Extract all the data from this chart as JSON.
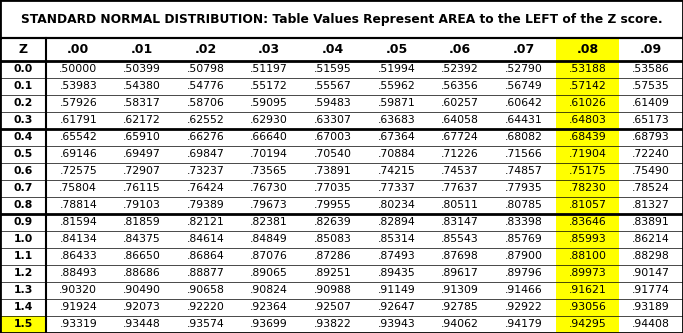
{
  "title": "STANDARD NORMAL DISTRIBUTION: Table Values Represent AREA to the LEFT of the Z score.",
  "columns": [
    "Z",
    ".00",
    ".01",
    ".02",
    ".03",
    ".04",
    ".05",
    ".06",
    ".07",
    ".08",
    ".09"
  ],
  "rows": [
    [
      "0.0",
      ".50000",
      ".50399",
      ".50798",
      ".51197",
      ".51595",
      ".51994",
      ".52392",
      ".52790",
      ".53188",
      ".53586"
    ],
    [
      "0.1",
      ".53983",
      ".54380",
      ".54776",
      ".55172",
      ".55567",
      ".55962",
      ".56356",
      ".56749",
      ".57142",
      ".57535"
    ],
    [
      "0.2",
      ".57926",
      ".58317",
      ".58706",
      ".59095",
      ".59483",
      ".59871",
      ".60257",
      ".60642",
      ".61026",
      ".61409"
    ],
    [
      "0.3",
      ".61791",
      ".62172",
      ".62552",
      ".62930",
      ".63307",
      ".63683",
      ".64058",
      ".64431",
      ".64803",
      ".65173"
    ],
    [
      "0.4",
      ".65542",
      ".65910",
      ".66276",
      ".66640",
      ".67003",
      ".67364",
      ".67724",
      ".68082",
      ".68439",
      ".68793"
    ],
    [
      "0.5",
      ".69146",
      ".69497",
      ".69847",
      ".70194",
      ".70540",
      ".70884",
      ".71226",
      ".71566",
      ".71904",
      ".72240"
    ],
    [
      "0.6",
      ".72575",
      ".72907",
      ".73237",
      ".73565",
      ".73891",
      ".74215",
      ".74537",
      ".74857",
      ".75175",
      ".75490"
    ],
    [
      "0.7",
      ".75804",
      ".76115",
      ".76424",
      ".76730",
      ".77035",
      ".77337",
      ".77637",
      ".77935",
      ".78230",
      ".78524"
    ],
    [
      "0.8",
      ".78814",
      ".79103",
      ".79389",
      ".79673",
      ".79955",
      ".80234",
      ".80511",
      ".80785",
      ".81057",
      ".81327"
    ],
    [
      "0.9",
      ".81594",
      ".81859",
      ".82121",
      ".82381",
      ".82639",
      ".82894",
      ".83147",
      ".83398",
      ".83646",
      ".83891"
    ],
    [
      "1.0",
      ".84134",
      ".84375",
      ".84614",
      ".84849",
      ".85083",
      ".85314",
      ".85543",
      ".85769",
      ".85993",
      ".86214"
    ],
    [
      "1.1",
      ".86433",
      ".86650",
      ".86864",
      ".87076",
      ".87286",
      ".87493",
      ".87698",
      ".87900",
      ".88100",
      ".88298"
    ],
    [
      "1.2",
      ".88493",
      ".88686",
      ".88877",
      ".89065",
      ".89251",
      ".89435",
      ".89617",
      ".89796",
      ".89973",
      ".90147"
    ],
    [
      "1.3",
      ".90320",
      ".90490",
      ".90658",
      ".90824",
      ".90988",
      ".91149",
      ".91309",
      ".91466",
      ".91621",
      ".91774"
    ],
    [
      "1.4",
      ".91924",
      ".92073",
      ".92220",
      ".92364",
      ".92507",
      ".92647",
      ".92785",
      ".92922",
      ".93056",
      ".93189"
    ],
    [
      "1.5",
      ".93319",
      ".93448",
      ".93574",
      ".93699",
      ".93822",
      ".93943",
      ".94062",
      ".94179",
      ".94295",
      ".94408"
    ]
  ],
  "highlight_col_idx": 9,
  "highlight_row_idx": 15,
  "highlight_col_color": "#FFFF00",
  "highlight_cell_color": "#FFFF00",
  "group_separators_after": [
    4,
    9
  ],
  "title_fontsize": 8.8,
  "cell_fontsize": 7.8,
  "header_fontsize": 9.0
}
